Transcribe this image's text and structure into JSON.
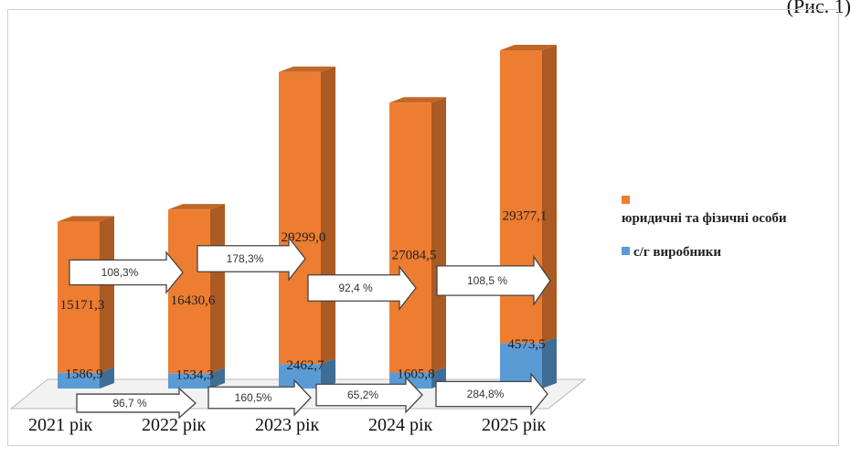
{
  "caption": "(Рис. 1)",
  "chart_data": {
    "type": "bar",
    "stacked": true,
    "categories": [
      "2021 рік",
      "2022 рік",
      "2023 рік",
      "2024 рік",
      "2025 рік"
    ],
    "series": [
      {
        "name": "с/г виробники",
        "color": "#5b9bd5",
        "values": [
          1586.9,
          1534.3,
          2462.7,
          1605.8,
          4573.5
        ],
        "labels": [
          "1586,9",
          "1534,3",
          "2462,7",
          "1605,8",
          "4573,5"
        ]
      },
      {
        "name": "юридичні та фізичні особи",
        "color": "#ed7d31",
        "values": [
          15171.3,
          16430.6,
          29299.0,
          27084.5,
          29377.1
        ],
        "labels": [
          "15171,3",
          "16430,6",
          "29299,0",
          "27084,5",
          "29377,1"
        ]
      }
    ],
    "growth_upper": [
      "108,3%",
      "178,3%",
      "92,4 %",
      "108,5 %"
    ],
    "growth_lower": [
      "96,7 %",
      "160,5%",
      "65,2%",
      "284,8%"
    ],
    "legend_position": "right",
    "view": "3d"
  }
}
